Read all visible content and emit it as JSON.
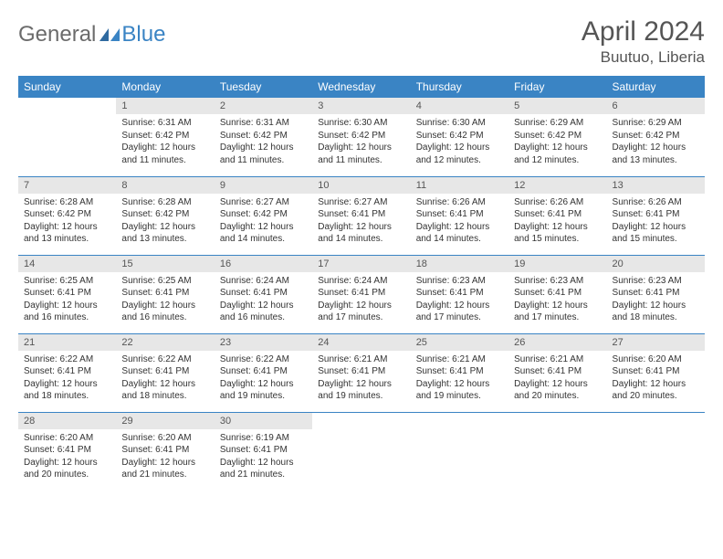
{
  "brand": {
    "part1": "General",
    "part2": "Blue"
  },
  "title": "April 2024",
  "location": "Buutuo, Liberia",
  "colors": {
    "header_bg": "#3a84c4",
    "header_text": "#ffffff",
    "daynum_bg": "#e7e7e7",
    "text": "#333333",
    "rule": "#3a84c4",
    "logo_gray": "#6b6b6b",
    "logo_blue": "#3a84c4"
  },
  "weekdays": [
    "Sunday",
    "Monday",
    "Tuesday",
    "Wednesday",
    "Thursday",
    "Friday",
    "Saturday"
  ],
  "weeks": [
    [
      null,
      {
        "n": "1",
        "sr": "6:31 AM",
        "ss": "6:42 PM",
        "dl": "12 hours and 11 minutes."
      },
      {
        "n": "2",
        "sr": "6:31 AM",
        "ss": "6:42 PM",
        "dl": "12 hours and 11 minutes."
      },
      {
        "n": "3",
        "sr": "6:30 AM",
        "ss": "6:42 PM",
        "dl": "12 hours and 11 minutes."
      },
      {
        "n": "4",
        "sr": "6:30 AM",
        "ss": "6:42 PM",
        "dl": "12 hours and 12 minutes."
      },
      {
        "n": "5",
        "sr": "6:29 AM",
        "ss": "6:42 PM",
        "dl": "12 hours and 12 minutes."
      },
      {
        "n": "6",
        "sr": "6:29 AM",
        "ss": "6:42 PM",
        "dl": "12 hours and 13 minutes."
      }
    ],
    [
      {
        "n": "7",
        "sr": "6:28 AM",
        "ss": "6:42 PM",
        "dl": "12 hours and 13 minutes."
      },
      {
        "n": "8",
        "sr": "6:28 AM",
        "ss": "6:42 PM",
        "dl": "12 hours and 13 minutes."
      },
      {
        "n": "9",
        "sr": "6:27 AM",
        "ss": "6:42 PM",
        "dl": "12 hours and 14 minutes."
      },
      {
        "n": "10",
        "sr": "6:27 AM",
        "ss": "6:41 PM",
        "dl": "12 hours and 14 minutes."
      },
      {
        "n": "11",
        "sr": "6:26 AM",
        "ss": "6:41 PM",
        "dl": "12 hours and 14 minutes."
      },
      {
        "n": "12",
        "sr": "6:26 AM",
        "ss": "6:41 PM",
        "dl": "12 hours and 15 minutes."
      },
      {
        "n": "13",
        "sr": "6:26 AM",
        "ss": "6:41 PM",
        "dl": "12 hours and 15 minutes."
      }
    ],
    [
      {
        "n": "14",
        "sr": "6:25 AM",
        "ss": "6:41 PM",
        "dl": "12 hours and 16 minutes."
      },
      {
        "n": "15",
        "sr": "6:25 AM",
        "ss": "6:41 PM",
        "dl": "12 hours and 16 minutes."
      },
      {
        "n": "16",
        "sr": "6:24 AM",
        "ss": "6:41 PM",
        "dl": "12 hours and 16 minutes."
      },
      {
        "n": "17",
        "sr": "6:24 AM",
        "ss": "6:41 PM",
        "dl": "12 hours and 17 minutes."
      },
      {
        "n": "18",
        "sr": "6:23 AM",
        "ss": "6:41 PM",
        "dl": "12 hours and 17 minutes."
      },
      {
        "n": "19",
        "sr": "6:23 AM",
        "ss": "6:41 PM",
        "dl": "12 hours and 17 minutes."
      },
      {
        "n": "20",
        "sr": "6:23 AM",
        "ss": "6:41 PM",
        "dl": "12 hours and 18 minutes."
      }
    ],
    [
      {
        "n": "21",
        "sr": "6:22 AM",
        "ss": "6:41 PM",
        "dl": "12 hours and 18 minutes."
      },
      {
        "n": "22",
        "sr": "6:22 AM",
        "ss": "6:41 PM",
        "dl": "12 hours and 18 minutes."
      },
      {
        "n": "23",
        "sr": "6:22 AM",
        "ss": "6:41 PM",
        "dl": "12 hours and 19 minutes."
      },
      {
        "n": "24",
        "sr": "6:21 AM",
        "ss": "6:41 PM",
        "dl": "12 hours and 19 minutes."
      },
      {
        "n": "25",
        "sr": "6:21 AM",
        "ss": "6:41 PM",
        "dl": "12 hours and 19 minutes."
      },
      {
        "n": "26",
        "sr": "6:21 AM",
        "ss": "6:41 PM",
        "dl": "12 hours and 20 minutes."
      },
      {
        "n": "27",
        "sr": "6:20 AM",
        "ss": "6:41 PM",
        "dl": "12 hours and 20 minutes."
      }
    ],
    [
      {
        "n": "28",
        "sr": "6:20 AM",
        "ss": "6:41 PM",
        "dl": "12 hours and 20 minutes."
      },
      {
        "n": "29",
        "sr": "6:20 AM",
        "ss": "6:41 PM",
        "dl": "12 hours and 21 minutes."
      },
      {
        "n": "30",
        "sr": "6:19 AM",
        "ss": "6:41 PM",
        "dl": "12 hours and 21 minutes."
      },
      null,
      null,
      null,
      null
    ]
  ],
  "labels": {
    "sunrise": "Sunrise:",
    "sunset": "Sunset:",
    "daylight": "Daylight:"
  }
}
